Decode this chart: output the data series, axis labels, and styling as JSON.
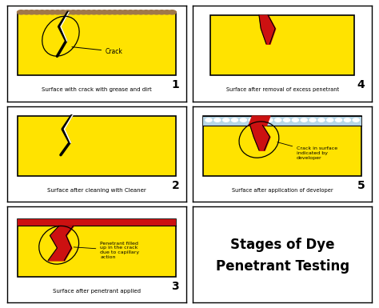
{
  "title_line1": "Stages of Dye",
  "title_line2": "Penetrant Testing",
  "bg_color": "#ffffff",
  "yellow": "#FFE300",
  "red": "#CC1111",
  "dirt_color": "#A0784A",
  "dev_color": "#B8D8E8",
  "captions": [
    "Surface with crack with grease and dirt",
    "Surface after cleaning with Cleaner",
    "Surface after penetrant applied",
    "Surface after removal of excess penetrant",
    "Surface after application of developer"
  ],
  "step_numbers": [
    "1",
    "2",
    "3",
    "4",
    "5"
  ],
  "crack_label": "Crack",
  "penetrant_label": "Penetrant filled\nup in the crack\ndue to capillary\naction",
  "developer_label": "Crack in surface\nindicated by\ndeveloper",
  "figsize": [
    4.74,
    3.85
  ],
  "dpi": 100
}
